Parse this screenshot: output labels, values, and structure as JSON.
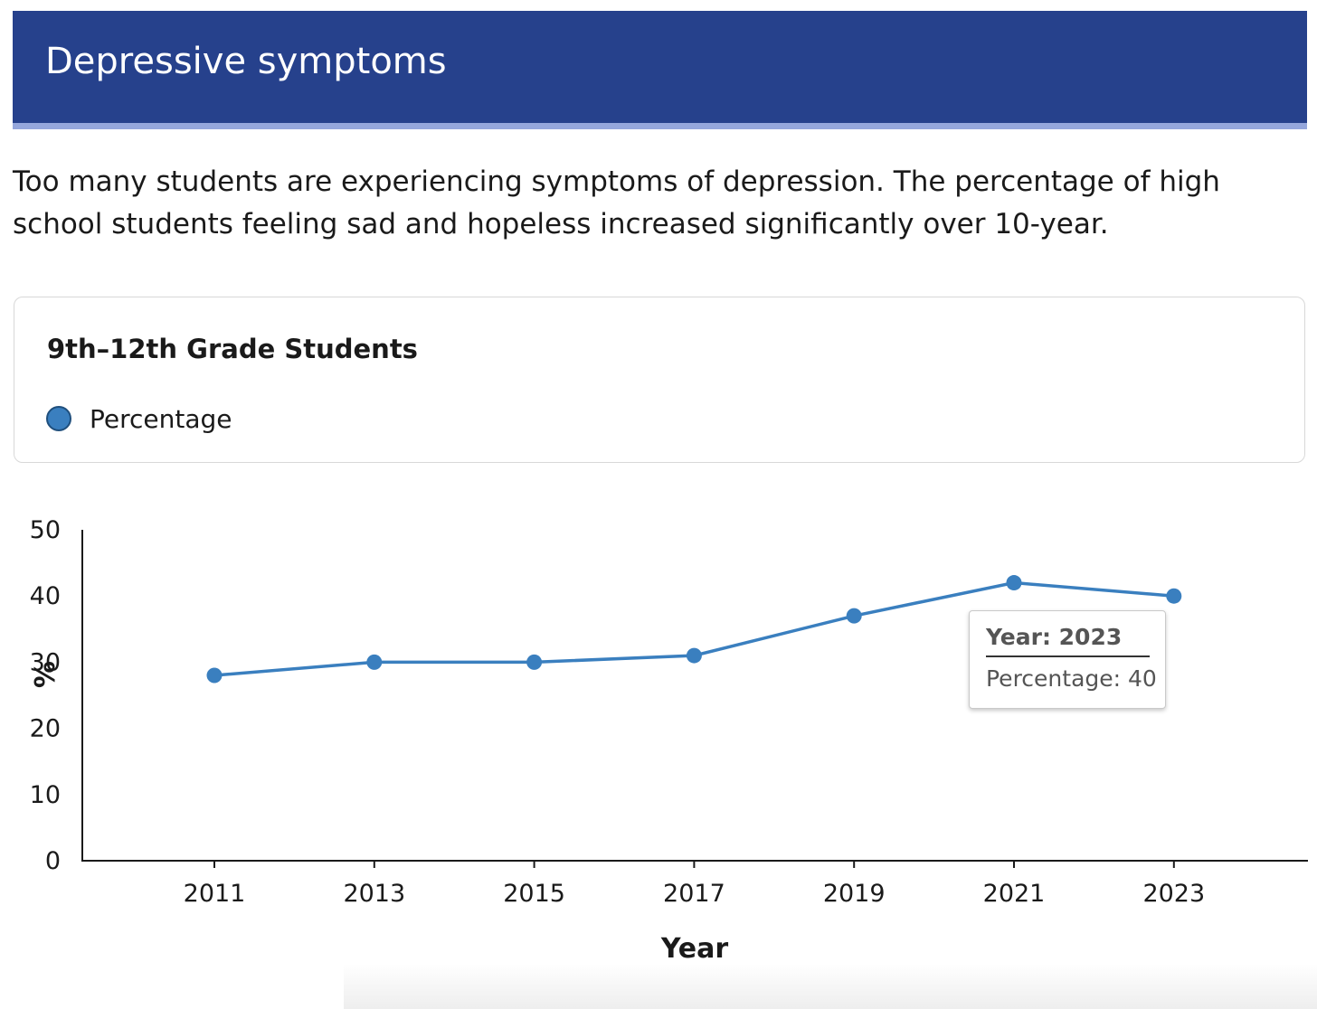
{
  "header": {
    "title": "Depressive symptoms"
  },
  "intro": {
    "text": "Too many students are experiencing symptoms of depression. The percentage of high school students feeling sad and hopeless increased significantly over 10-year."
  },
  "card": {
    "title": "9th–12th Grade Students",
    "legend_label": "Percentage"
  },
  "tooltip": {
    "title": "Year: 2023",
    "value": "Percentage: 40"
  },
  "colors": {
    "header_bg": "#26418c",
    "header_stripe": "#95a7dc",
    "series": "#3a7fbf"
  },
  "chart_data": {
    "type": "line",
    "title": "9th–12th Grade Students",
    "xlabel": "Year",
    "ylabel": "%",
    "categories": [
      "2011",
      "2013",
      "2015",
      "2017",
      "2019",
      "2021",
      "2023"
    ],
    "series": [
      {
        "name": "Percentage",
        "values": [
          28,
          30,
          30,
          31,
          37,
          42,
          40
        ]
      }
    ],
    "ylim": [
      0,
      50
    ],
    "yticks": [
      0,
      10,
      20,
      30,
      40,
      50
    ],
    "grid": false,
    "legend": "top-left"
  }
}
